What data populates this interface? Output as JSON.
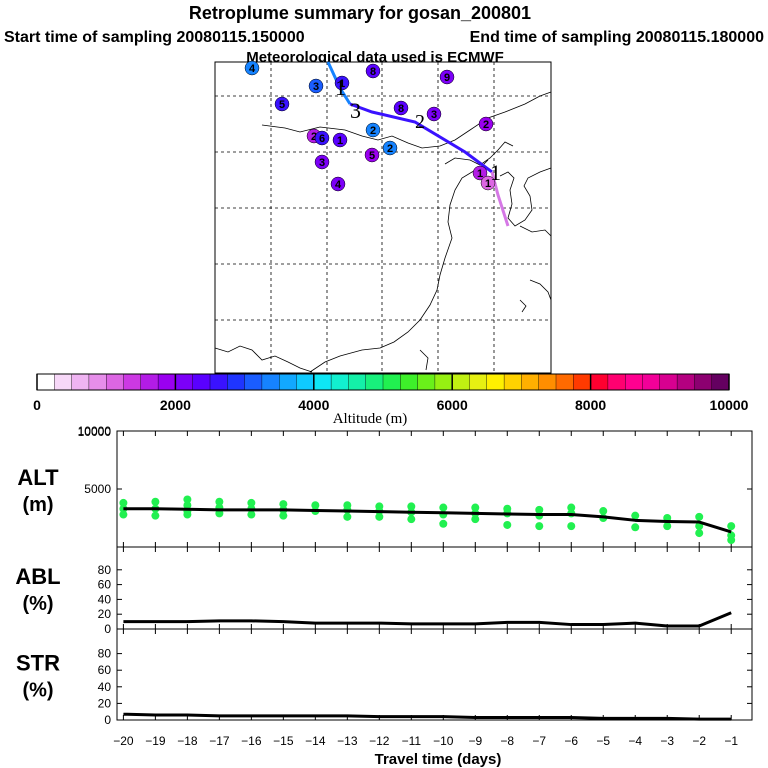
{
  "header": {
    "title": "Retroplume summary for gosan_200801",
    "start_label": "Start time of sampling 20080115.150000",
    "end_label": "End time of sampling 20080115.180000",
    "met_label": "Meteorological data used is ECMWF"
  },
  "colorbar": {
    "title": "Altitude (m)",
    "ticks": [
      "0",
      "2000",
      "4000",
      "6000",
      "8000",
      "10000"
    ],
    "colors": [
      "#ffffff",
      "#f7d8f8",
      "#efb4f2",
      "#e68eea",
      "#dc66e3",
      "#cc39e3",
      "#b31ce6",
      "#9a00f0",
      "#7c00f8",
      "#5a00ff",
      "#3a12ff",
      "#1f35ff",
      "#1a5dff",
      "#1683ff",
      "#12a8ff",
      "#0fcaff",
      "#0ee6f5",
      "#12f0cf",
      "#14f0a8",
      "#18f07c",
      "#21f050",
      "#3ef02a",
      "#6af01a",
      "#96f012",
      "#c0f012",
      "#e6f012",
      "#fff000",
      "#ffd200",
      "#ffb000",
      "#ff8e00",
      "#ff6a00",
      "#ff3a00",
      "#ff0030",
      "#ff0070",
      "#ff0090",
      "#f20098",
      "#d80090",
      "#b40080",
      "#8c0070",
      "#640060"
    ]
  },
  "map": {
    "trajectory_altitude_color": "#3a12ff",
    "surface_color": "#d678e6",
    "markers": [
      {
        "label": "4",
        "color": "#1683ff"
      },
      {
        "label": "3",
        "color": "#1a5dff"
      },
      {
        "label": "1",
        "color": "#3a12ff"
      },
      {
        "label": "8",
        "color": "#5a00ff"
      },
      {
        "label": "9",
        "color": "#7c00f8"
      },
      {
        "label": "5",
        "color": "#3a12ff"
      },
      {
        "label": "8",
        "color": "#5a00ff"
      },
      {
        "label": "3",
        "color": "#7c00f8"
      },
      {
        "label": "2",
        "color": "#9a00f0"
      },
      {
        "label": "2",
        "color": "#b31ce6"
      },
      {
        "label": "6",
        "color": "#3a12ff"
      },
      {
        "label": "1",
        "color": "#5a00ff"
      },
      {
        "label": "2",
        "color": "#1683ff"
      },
      {
        "label": "3",
        "color": "#7c00f8"
      },
      {
        "label": "5",
        "color": "#9a00f0"
      },
      {
        "label": "2",
        "color": "#1683ff"
      },
      {
        "label": "4",
        "color": "#7c00f8"
      },
      {
        "label": "1",
        "color": "#b31ce6"
      },
      {
        "label": "1",
        "color": "#dc66e3"
      }
    ]
  },
  "chart_data": {
    "type": "line",
    "xlabel": "Travel time (days)",
    "x": [
      -20,
      -19,
      -18,
      -17,
      -16,
      -15,
      -14,
      -13,
      -12,
      -11,
      -10,
      -9,
      -8,
      -7,
      -6,
      -5,
      -4,
      -3,
      -2,
      -1
    ],
    "x_tick_labels": [
      "−20",
      "−19",
      "−18",
      "−17",
      "−16",
      "−15",
      "−14",
      "−13",
      "−12",
      "−11",
      "−10",
      "−9",
      "−8",
      "−7",
      "−6",
      "−5",
      "−4",
      "−3",
      "−2",
      "−1"
    ],
    "panels": [
      {
        "name": "ALT",
        "ylabel": "ALT",
        "unit": "(m)",
        "ylim": [
          0,
          10000
        ],
        "yticks": [
          0,
          5000,
          10000
        ],
        "ytick_labels": [
          "",
          "5000",
          "10000"
        ],
        "mean_line": [
          3300,
          3300,
          3250,
          3200,
          3200,
          3200,
          3150,
          3100,
          3050,
          3000,
          2950,
          2900,
          2850,
          2800,
          2800,
          2600,
          2300,
          2200,
          2150,
          1300
        ],
        "point_color": "#21f050",
        "points": [
          [
            -20,
            3800
          ],
          [
            -20,
            3300
          ],
          [
            -20,
            2800
          ],
          [
            -19,
            3900
          ],
          [
            -19,
            3300
          ],
          [
            -19,
            2700
          ],
          [
            -18,
            4100
          ],
          [
            -18,
            3600
          ],
          [
            -18,
            3100
          ],
          [
            -18,
            2800
          ],
          [
            -17,
            3900
          ],
          [
            -17,
            3400
          ],
          [
            -17,
            2900
          ],
          [
            -16,
            3800
          ],
          [
            -16,
            3300
          ],
          [
            -16,
            2800
          ],
          [
            -15,
            3700
          ],
          [
            -15,
            3200
          ],
          [
            -15,
            2700
          ],
          [
            -14,
            3600
          ],
          [
            -14,
            3100
          ],
          [
            -13,
            3600
          ],
          [
            -13,
            3200
          ],
          [
            -13,
            2600
          ],
          [
            -12,
            3500
          ],
          [
            -12,
            3100
          ],
          [
            -12,
            2600
          ],
          [
            -11,
            3500
          ],
          [
            -11,
            3000
          ],
          [
            -11,
            2400
          ],
          [
            -10,
            3400
          ],
          [
            -10,
            2800
          ],
          [
            -10,
            2000
          ],
          [
            -9,
            3400
          ],
          [
            -9,
            2900
          ],
          [
            -9,
            2400
          ],
          [
            -8,
            3300
          ],
          [
            -8,
            2900
          ],
          [
            -8,
            1900
          ],
          [
            -7,
            3200
          ],
          [
            -7,
            2700
          ],
          [
            -7,
            1800
          ],
          [
            -6,
            3400
          ],
          [
            -6,
            2900
          ],
          [
            -6,
            1800
          ],
          [
            -5,
            3100
          ],
          [
            -5,
            2500
          ],
          [
            -4,
            2700
          ],
          [
            -4,
            1700
          ],
          [
            -3,
            2500
          ],
          [
            -3,
            1800
          ],
          [
            -2,
            2600
          ],
          [
            -2,
            1800
          ],
          [
            -2,
            1200
          ],
          [
            -1,
            1800
          ],
          [
            -1,
            1000
          ],
          [
            -1,
            600
          ]
        ]
      },
      {
        "name": "ABL",
        "ylabel": "ABL",
        "unit": "(%)",
        "ylim": [
          0,
          100
        ],
        "yticks": [
          0,
          20,
          40,
          60,
          80
        ],
        "ytick_labels": [
          "0",
          "20",
          "40",
          "60",
          "80"
        ],
        "mean_line": [
          10,
          10,
          10,
          11,
          11,
          10,
          8,
          8,
          8,
          7,
          7,
          7,
          9,
          9,
          6,
          6,
          8,
          4,
          4,
          22
        ]
      },
      {
        "name": "STR",
        "ylabel": "STR",
        "unit": "(%)",
        "ylim": [
          0,
          100
        ],
        "yticks": [
          0,
          20,
          40,
          60,
          80
        ],
        "ytick_labels": [
          "0",
          "20",
          "40",
          "60",
          "80"
        ],
        "mean_line": [
          7,
          6,
          6,
          5,
          5,
          5,
          5,
          5,
          4,
          4,
          4,
          3,
          3,
          3,
          3,
          2,
          2,
          2,
          1,
          1
        ]
      }
    ]
  }
}
